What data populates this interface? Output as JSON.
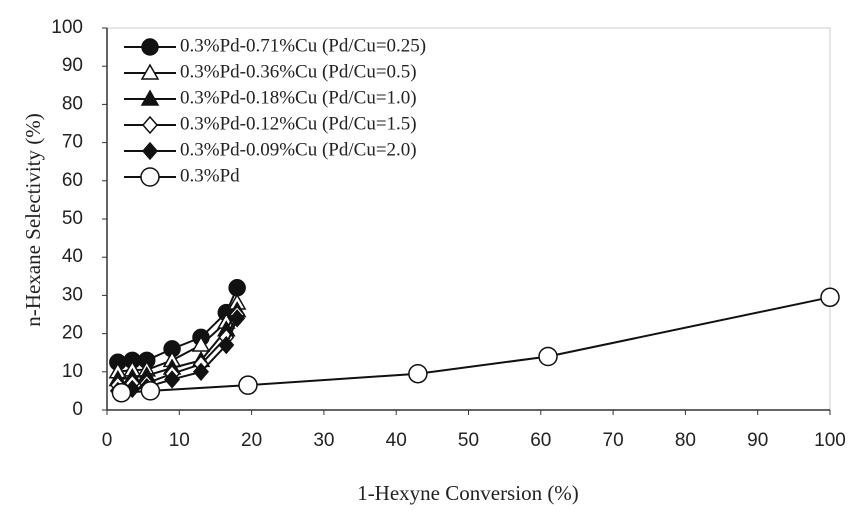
{
  "chart_data": {
    "type": "line",
    "xlabel": "1-Hexyne Conversion (%)",
    "ylabel": "n-Hexane Selectivity (%)",
    "xlim": [
      0,
      100
    ],
    "xticks": [
      0,
      10,
      20,
      30,
      40,
      50,
      60,
      70,
      80,
      90,
      100
    ],
    "ylim": [
      0,
      100
    ],
    "yticks": [
      0,
      10,
      20,
      30,
      40,
      50,
      60,
      70,
      80,
      90,
      100
    ],
    "series": [
      {
        "name": "0.3%Pd-0.71%Cu (Pd/Cu=0.25)",
        "color": "#111111",
        "marker": "circle",
        "filled": true,
        "x": [
          1.5,
          3.5,
          5.5,
          9,
          13,
          16.5,
          18
        ],
        "values": [
          12.5,
          13,
          13,
          16,
          19,
          25.5,
          32
        ]
      },
      {
        "name": "0.3%Pd-0.36%Cu (Pd/Cu=0.5)",
        "color": "#111111",
        "marker": "triangle",
        "filled": false,
        "x": [
          1.5,
          3.5,
          5.5,
          9,
          13,
          16.5,
          18
        ],
        "values": [
          10,
          10.5,
          10.5,
          13,
          17,
          23,
          28
        ]
      },
      {
        "name": "0.3%Pd-0.18%Cu (Pd/Cu=1.0)",
        "color": "#111111",
        "marker": "triangle",
        "filled": true,
        "x": [
          1.5,
          3.5,
          5.5,
          9,
          13,
          16.5,
          18
        ],
        "values": [
          8,
          8.5,
          9,
          11,
          13,
          21,
          26
        ]
      },
      {
        "name": "0.3%Pd-0.12%Cu (Pd/Cu=1.5)",
        "color": "#111111",
        "marker": "diamond",
        "filled": false,
        "x": [
          1.5,
          3.5,
          5.5,
          9,
          13,
          16.5,
          18
        ],
        "values": [
          6.5,
          7,
          7,
          9.5,
          12,
          19,
          25
        ]
      },
      {
        "name": "0.3%Pd-0.09%Cu (Pd/Cu=2.0)",
        "color": "#111111",
        "marker": "diamond",
        "filled": true,
        "x": [
          1.5,
          3.5,
          5.5,
          9,
          13,
          16.5,
          18
        ],
        "values": [
          5,
          5.5,
          6,
          8,
          10,
          17,
          24
        ]
      },
      {
        "name": "0.3%Pd",
        "color": "#111111",
        "marker": "circle",
        "filled": false,
        "x": [
          2,
          6,
          19.5,
          43,
          61,
          100
        ],
        "values": [
          4.5,
          5,
          6.5,
          9.5,
          14,
          29.5
        ]
      }
    ]
  }
}
